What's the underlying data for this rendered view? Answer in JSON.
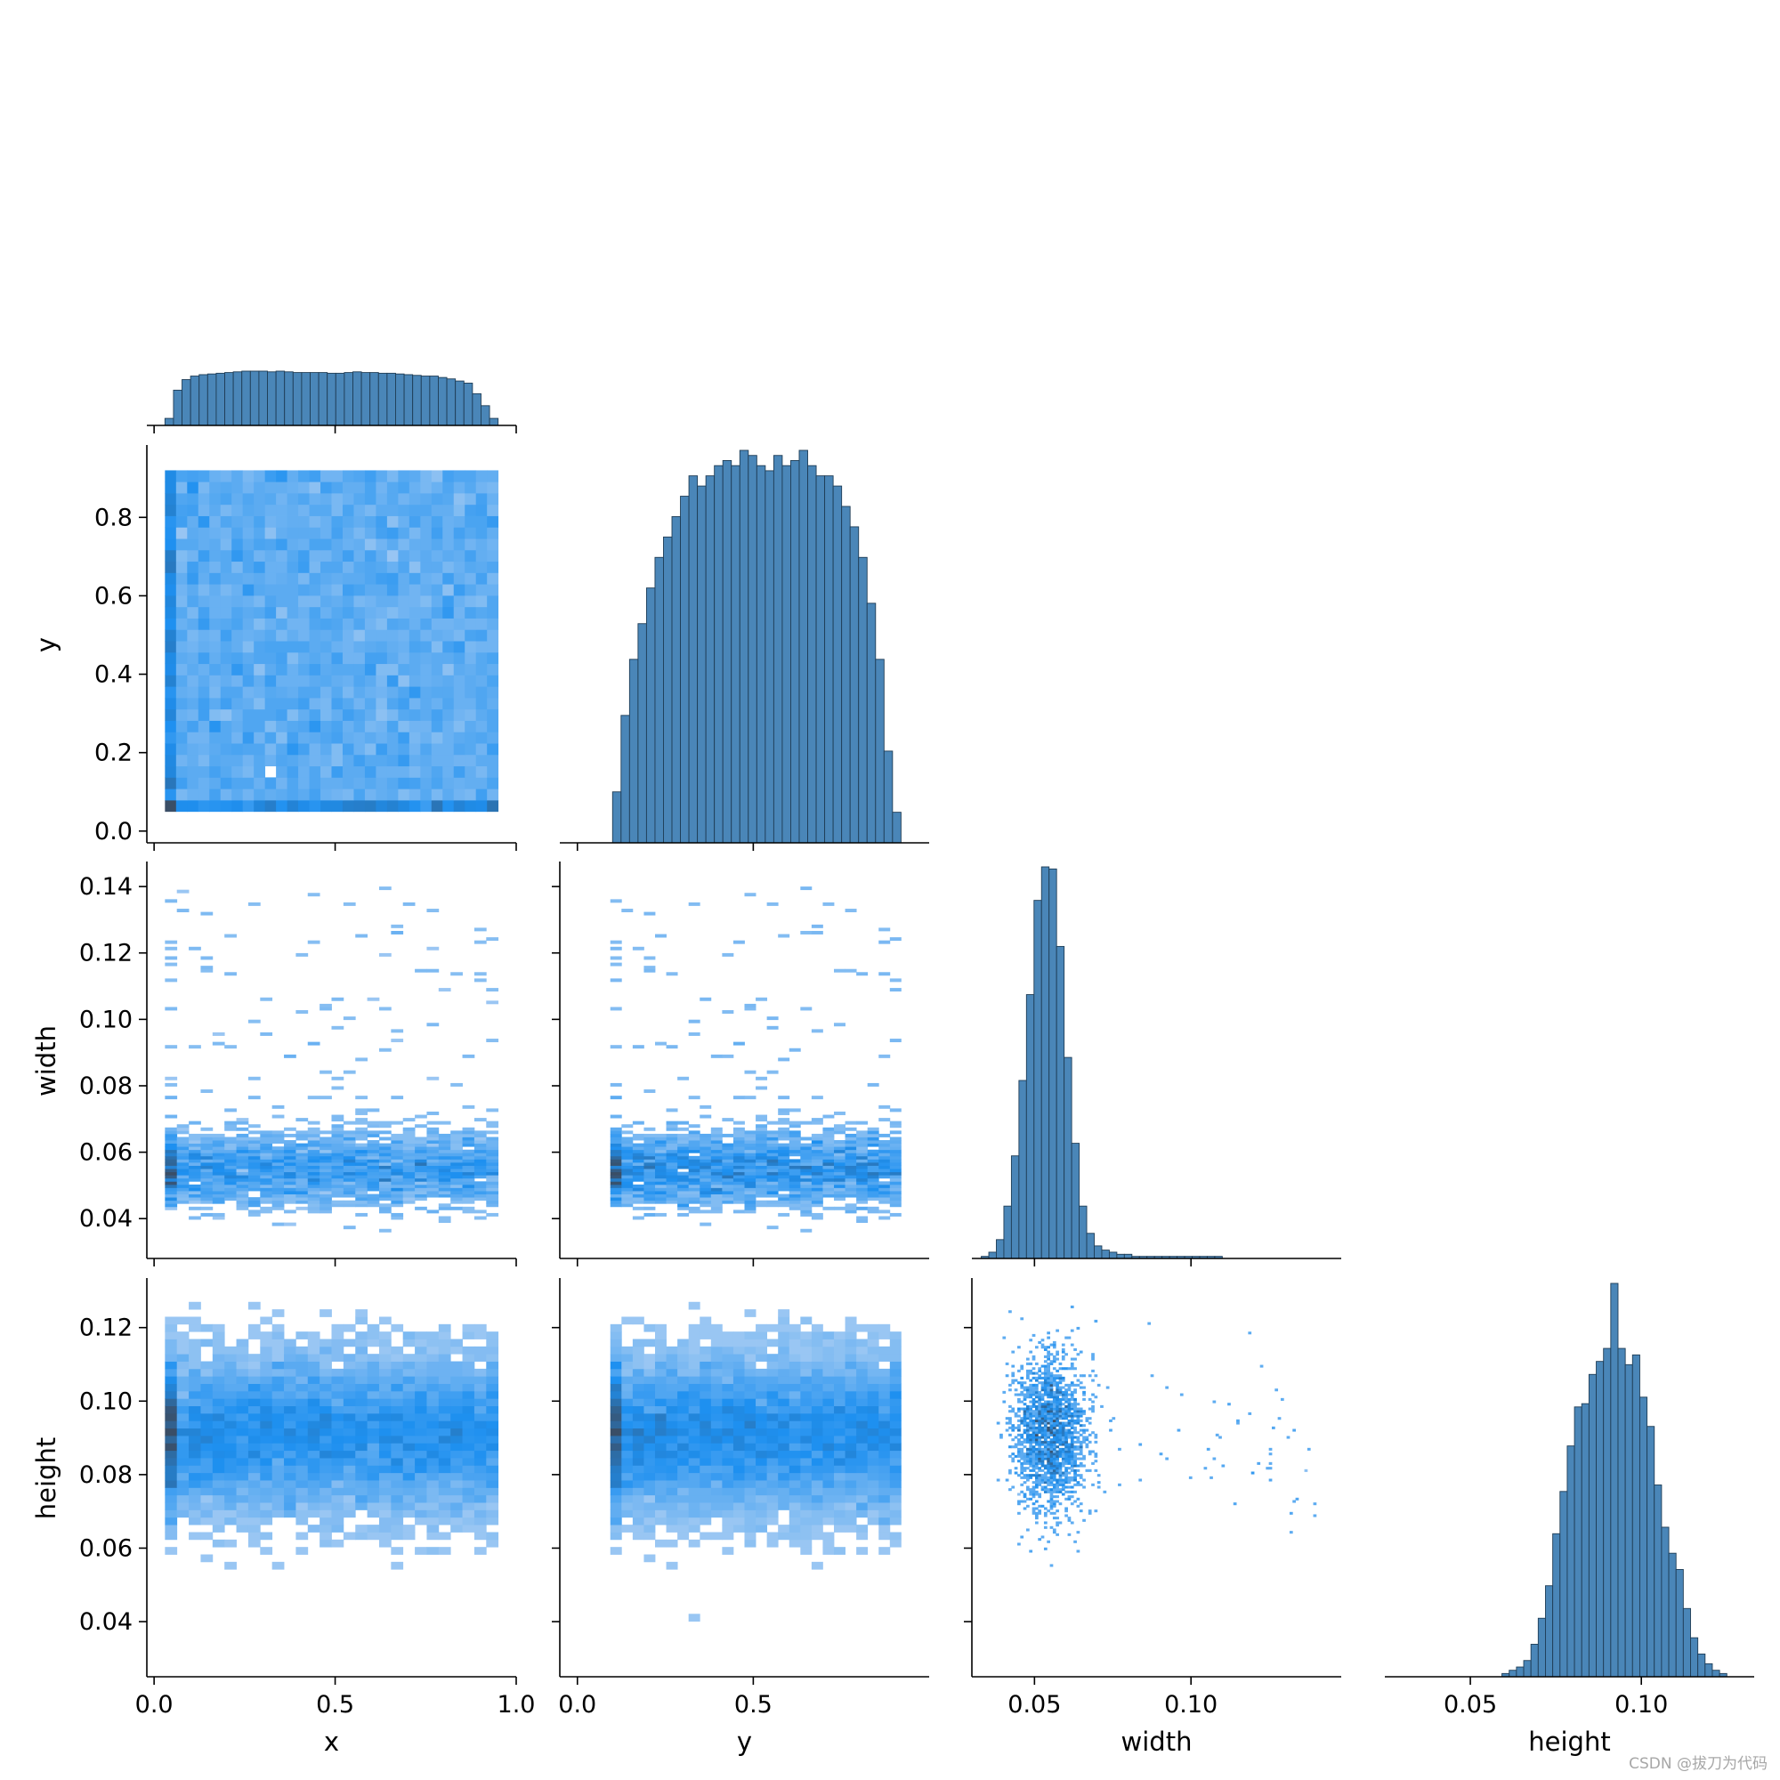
{
  "chart_data": {
    "type": "pairplot",
    "variables": [
      "x",
      "y",
      "width",
      "height"
    ],
    "corner": true,
    "bar_color": "#4a86b8",
    "bar_edge_color": "#1f3d56",
    "heatmap_color_low": "#b0d0f3",
    "heatmap_color_mid": "#1e90f0",
    "heatmap_color_high": "#3a4e66",
    "axes": {
      "x": {
        "lim": [
          -0.02,
          1.0
        ],
        "ticks": [
          0.0,
          0.5,
          1.0
        ],
        "tick_labels": [
          "0.0",
          "0.5",
          "1.0"
        ],
        "label": "x"
      },
      "y": {
        "lim": [
          -0.03,
          0.98
        ],
        "ticks": [
          0.0,
          0.2,
          0.4,
          0.6,
          0.8
        ],
        "tick_labels": [
          "0.0",
          "0.2",
          "0.4",
          "0.6",
          "0.8"
        ],
        "label": "y"
      },
      "y_bottom": {
        "lim": [
          -0.05,
          1.0
        ],
        "ticks": [
          0.0,
          0.5
        ],
        "tick_labels": [
          "0.0",
          "0.5"
        ],
        "label": "y"
      },
      "width": {
        "lim": [
          0.028,
          0.147
        ],
        "ticks": [
          0.04,
          0.06,
          0.08,
          0.1,
          0.12,
          0.14
        ],
        "tick_labels": [
          "0.04",
          "0.06",
          "0.08",
          "0.10",
          "0.12",
          "0.14"
        ],
        "label": "width"
      },
      "width_bottom": {
        "lim": [
          0.03,
          0.148
        ],
        "ticks": [
          0.05,
          0.1
        ],
        "tick_labels": [
          "0.05",
          "0.10"
        ],
        "label": "width"
      },
      "height": {
        "lim": [
          0.025,
          0.133
        ],
        "ticks": [
          0.04,
          0.06,
          0.08,
          0.1,
          0.12
        ],
        "tick_labels": [
          "0.04",
          "0.06",
          "0.08",
          "0.10",
          "0.12"
        ],
        "label": "height"
      },
      "height_bottom": {
        "lim": [
          0.025,
          0.133
        ],
        "ticks": [
          0.05,
          0.1
        ],
        "tick_labels": [
          "0.05",
          "0.10"
        ],
        "label": "height"
      }
    },
    "histograms": [
      {
        "variable": "x",
        "bins_range": [
          0.03,
          0.95
        ],
        "counts": [
          10,
          50,
          65,
          70,
          72,
          73,
          74,
          75,
          76,
          77,
          77,
          77,
          76,
          77,
          76,
          75,
          75,
          75,
          75,
          74,
          74,
          75,
          76,
          75,
          75,
          74,
          74,
          73,
          72,
          71,
          70,
          70,
          68,
          66,
          63,
          60,
          45,
          28,
          10
        ]
      },
      {
        "variable": "y",
        "bins_range": [
          0.1,
          0.92
        ],
        "counts": [
          10,
          25,
          36,
          43,
          50,
          56,
          60,
          64,
          68,
          72,
          70,
          72,
          74,
          75,
          74,
          77,
          76,
          74,
          73,
          76,
          74,
          75,
          77,
          74,
          72,
          72,
          70,
          66,
          62,
          56,
          47,
          36,
          18,
          6
        ]
      },
      {
        "variable": "width",
        "bins_range": [
          0.033,
          0.11
        ],
        "counts": [
          1,
          3,
          9,
          25,
          49,
          85,
          126,
          171,
          187,
          186,
          149,
          96,
          55,
          25,
          12,
          6,
          4,
          3,
          2,
          2,
          1,
          1,
          1,
          1,
          1,
          1,
          1,
          1,
          1,
          1,
          1,
          1
        ]
      },
      {
        "variable": "height",
        "bins_range": [
          0.055,
          0.125
        ],
        "counts": [
          0,
          0,
          1,
          2,
          3,
          5,
          10,
          18,
          28,
          44,
          57,
          71,
          83,
          84,
          93,
          97,
          101,
          121,
          101,
          96,
          99,
          86,
          77,
          59,
          46,
          38,
          33,
          21,
          12,
          7,
          4,
          2,
          1
        ]
      }
    ],
    "joint_histograms": [
      {
        "x": "x",
        "y": "y",
        "x_range": [
          0.03,
          0.95
        ],
        "y_range": [
          0.05,
          0.92
        ],
        "pattern": "uniform block, dense 0.1–0.9 in both"
      },
      {
        "x": "x",
        "y": "width",
        "x_range": [
          0.03,
          0.95
        ],
        "y_range": [
          0.035,
          0.14
        ],
        "pattern": "dense band at width 0.045–0.065"
      },
      {
        "x": "y",
        "y": "width",
        "x_range": [
          0.03,
          0.92
        ],
        "y_range": [
          0.035,
          0.14
        ],
        "pattern": "dense band at width 0.045–0.065"
      },
      {
        "x": "x",
        "y": "height",
        "x_range": [
          0.03,
          0.95
        ],
        "y_range": [
          0.03,
          0.127
        ],
        "pattern": "dense band at height 0.075–0.105"
      },
      {
        "x": "y",
        "y": "height",
        "x_range": [
          0.03,
          0.92
        ],
        "y_range": [
          0.03,
          0.127
        ],
        "pattern": "dense band at height 0.075–0.105"
      },
      {
        "x": "width",
        "y": "height",
        "x_range": [
          0.036,
          0.14
        ],
        "y_range": [
          0.055,
          0.126
        ],
        "pattern": "dense blob at width 0.055, height 0.09 with sparse tail to right"
      }
    ]
  },
  "watermark": "CSDN @拔刀为代码"
}
